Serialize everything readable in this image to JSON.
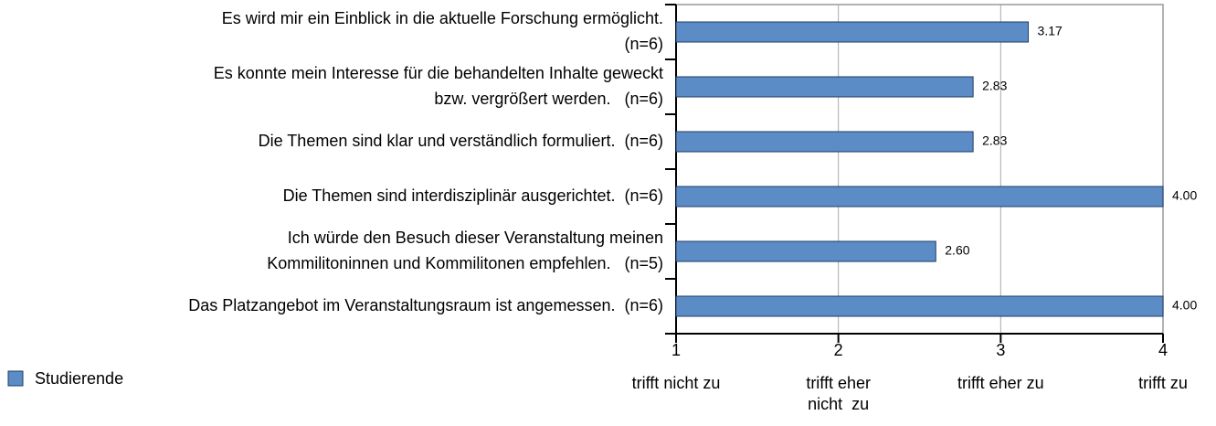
{
  "chart_data": {
    "type": "bar",
    "orientation": "horizontal",
    "categories": [
      [
        "Es wird mir ein Einblick in die aktuelle Forschung ermöglicht.",
        "(n=6)"
      ],
      [
        "Es konnte mein Interesse für die behandelten Inhalte geweckt",
        "bzw. vergrößert werden.   (n=6)"
      ],
      [
        "Die Themen sind klar und verständlich formuliert.  (n=6)"
      ],
      [
        "Die Themen sind interdisziplinär ausgerichtet.  (n=6)"
      ],
      [
        "Ich würde den Besuch dieser Veranstaltung meinen",
        "Kommilitoninnen und Kommilitonen empfehlen.   (n=5)"
      ],
      [
        "Das Platzangebot im Veranstaltungsraum ist angemessen.  (n=6)"
      ]
    ],
    "series": [
      {
        "name": "Studierende",
        "color": "#5b8cc6",
        "values": [
          3.17,
          2.83,
          2.83,
          4.0,
          2.6,
          4.0
        ],
        "value_labels": [
          "3.17",
          "2.83",
          "2.83",
          "4.00",
          "2.60",
          "4.00"
        ]
      }
    ],
    "xlim": [
      1,
      4
    ],
    "xticks": [
      1,
      2,
      3,
      4
    ],
    "xtick_descriptions": [
      [
        "trifft nicht zu"
      ],
      [
        "trifft eher",
        "nicht  zu"
      ],
      [
        "trifft eher zu"
      ],
      [
        "trifft zu"
      ]
    ],
    "grid": true,
    "legend": "bottom-left"
  }
}
